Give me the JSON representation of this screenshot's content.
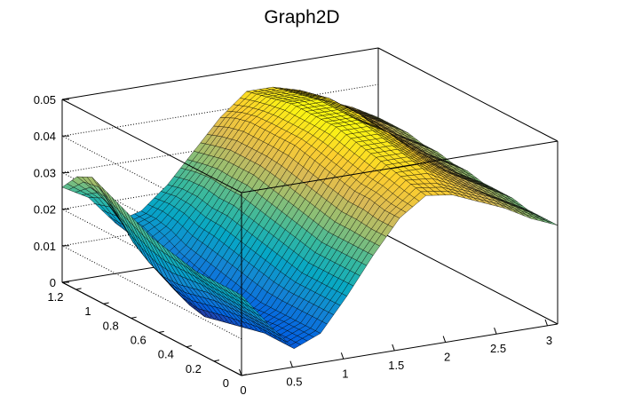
{
  "chart_data": {
    "type": "surface3d",
    "title": "Graph2D",
    "xlabel": "",
    "ylabel": "",
    "zlabel": "",
    "xlim": [
      0,
      3.1
    ],
    "ylim": [
      0,
      1.3
    ],
    "zlim": [
      0,
      0.05
    ],
    "x_ticks": [
      "0",
      "0.5",
      "1",
      "1.5",
      "2",
      "2.5",
      "3"
    ],
    "x_tick_values": [
      0,
      0.5,
      1,
      1.5,
      2,
      2.5,
      3
    ],
    "y_ticks": [
      "0",
      "0.2",
      "0.4",
      "0.6",
      "0.8",
      "1",
      "1.2"
    ],
    "y_tick_values": [
      0,
      0.2,
      0.4,
      0.6,
      0.8,
      1.0,
      1.2
    ],
    "z_ticks": [
      "0",
      "0.01",
      "0.02",
      "0.03",
      "0.04",
      "0.05"
    ],
    "z_tick_values": [
      0,
      0.01,
      0.02,
      0.03,
      0.04,
      0.05
    ],
    "grid": true,
    "colormap": [
      "#352a87",
      "#0363e1",
      "#1485d4",
      "#06a7c6",
      "#38b99e",
      "#92bf73",
      "#d9ba56",
      "#fcce2e",
      "#f9fb0e"
    ],
    "surface": {
      "x": [
        0,
        0.26,
        0.52,
        0.78,
        1.03,
        1.29,
        1.55,
        1.81,
        2.07,
        2.33,
        2.58,
        2.84,
        3.1
      ],
      "y": [
        0,
        0.11,
        0.22,
        0.33,
        0.43,
        0.54,
        0.65,
        0.76,
        0.87,
        0.98,
        1.08,
        1.19,
        1.3
      ],
      "z": [
        [
          0.022,
          0.013,
          0.005,
          0.008,
          0.017,
          0.027,
          0.036,
          0.041,
          0.04,
          0.037,
          0.034,
          0.03,
          0.027
        ],
        [
          0.022,
          0.013,
          0.005,
          0.008,
          0.017,
          0.027,
          0.036,
          0.042,
          0.041,
          0.038,
          0.035,
          0.031,
          0.027
        ],
        [
          0.022,
          0.013,
          0.005,
          0.008,
          0.017,
          0.027,
          0.037,
          0.043,
          0.043,
          0.039,
          0.035,
          0.031,
          0.027
        ],
        [
          0.022,
          0.013,
          0.004,
          0.008,
          0.017,
          0.027,
          0.037,
          0.044,
          0.044,
          0.04,
          0.036,
          0.032,
          0.028
        ],
        [
          0.023,
          0.013,
          0.003,
          0.008,
          0.018,
          0.028,
          0.038,
          0.045,
          0.045,
          0.041,
          0.036,
          0.032,
          0.028
        ],
        [
          0.024,
          0.012,
          0.002,
          0.009,
          0.019,
          0.029,
          0.039,
          0.046,
          0.046,
          0.042,
          0.037,
          0.032,
          0.028
        ],
        [
          0.025,
          0.011,
          0.001,
          0.01,
          0.02,
          0.03,
          0.04,
          0.047,
          0.047,
          0.043,
          0.037,
          0.033,
          0.029
        ],
        [
          0.027,
          0.011,
          0.002,
          0.011,
          0.021,
          0.031,
          0.041,
          0.047,
          0.047,
          0.043,
          0.038,
          0.033,
          0.029
        ],
        [
          0.029,
          0.013,
          0.004,
          0.012,
          0.022,
          0.032,
          0.041,
          0.047,
          0.047,
          0.044,
          0.038,
          0.034,
          0.03
        ],
        [
          0.031,
          0.016,
          0.007,
          0.013,
          0.022,
          0.032,
          0.041,
          0.047,
          0.047,
          0.044,
          0.039,
          0.034,
          0.03
        ],
        [
          0.033,
          0.021,
          0.01,
          0.015,
          0.023,
          0.032,
          0.041,
          0.046,
          0.046,
          0.044,
          0.039,
          0.035,
          0.031
        ],
        [
          0.031,
          0.024,
          0.013,
          0.016,
          0.023,
          0.031,
          0.04,
          0.045,
          0.045,
          0.043,
          0.039,
          0.035,
          0.031
        ],
        [
          0.026,
          0.022,
          0.014,
          0.016,
          0.022,
          0.03,
          0.038,
          0.044,
          0.044,
          0.042,
          0.038,
          0.035,
          0.031
        ]
      ]
    }
  }
}
